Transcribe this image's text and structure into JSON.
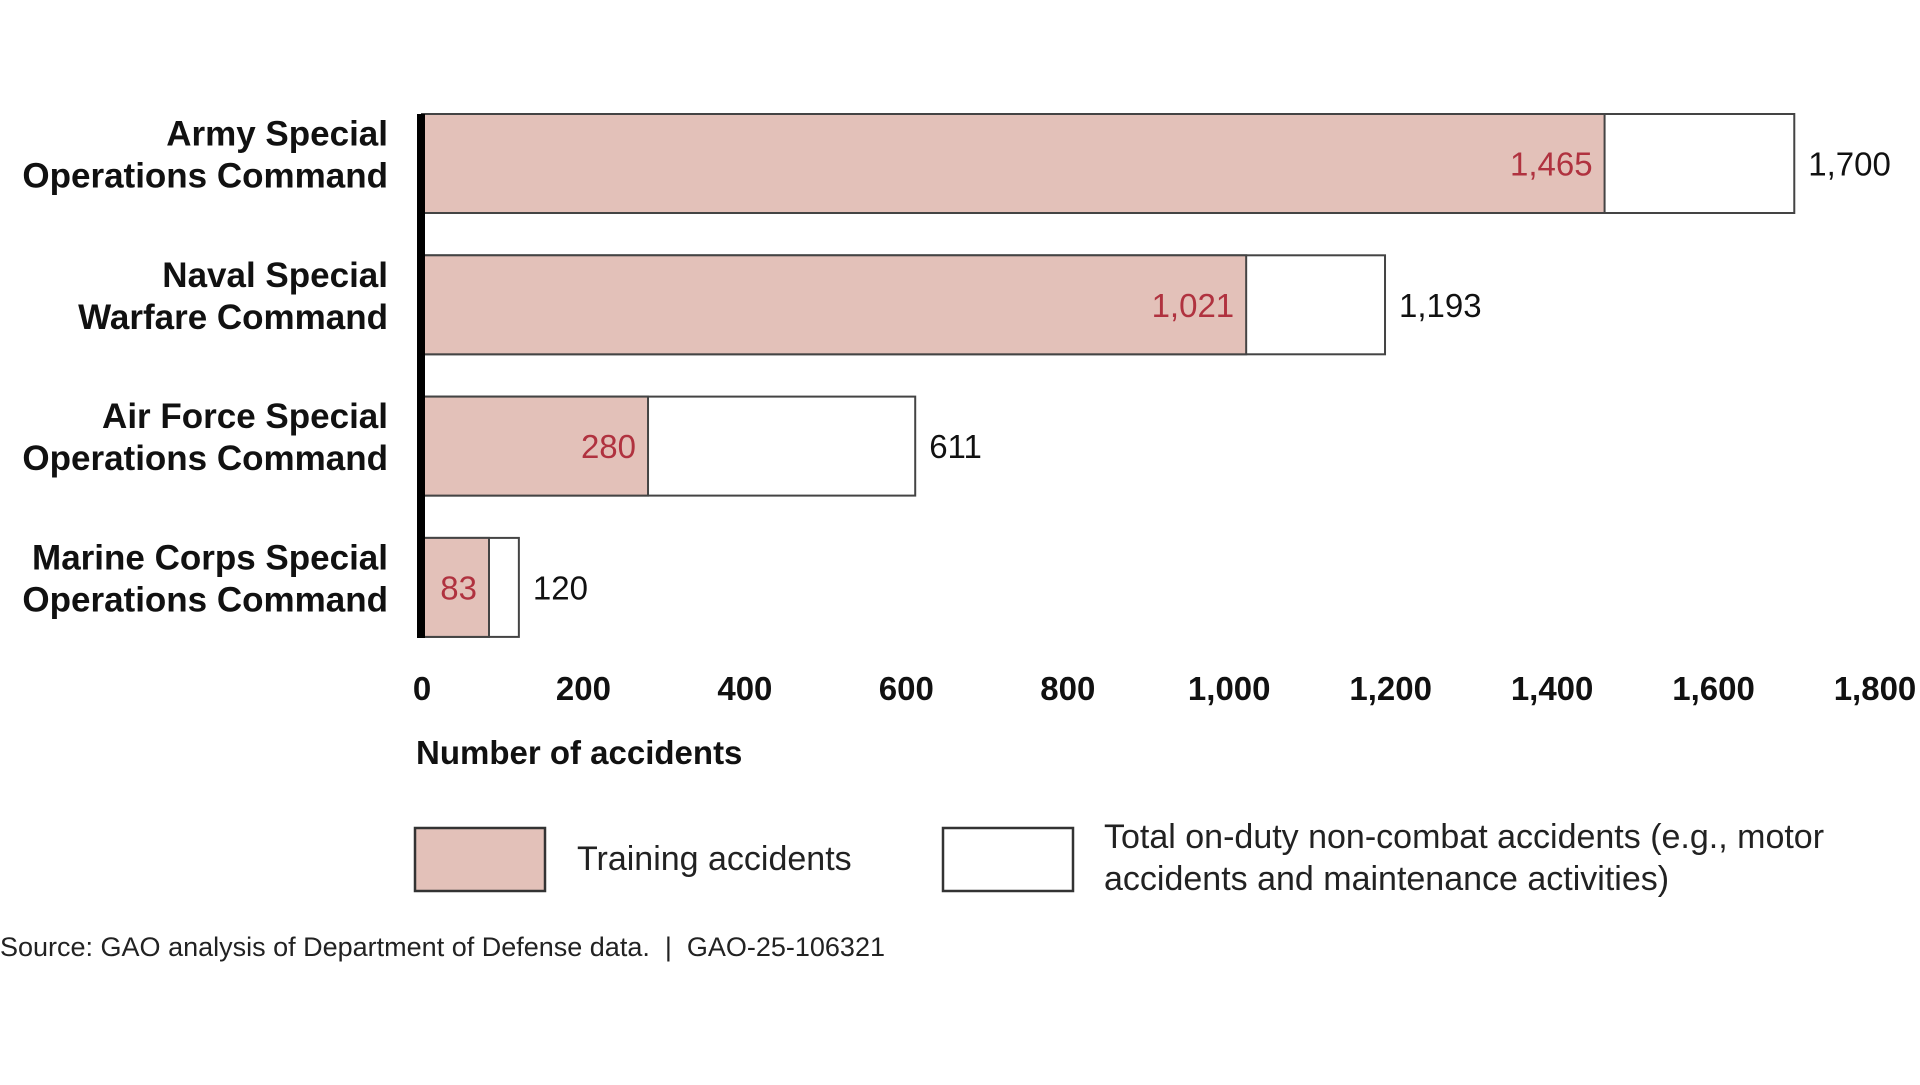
{
  "chart_data": {
    "type": "bar",
    "orientation": "horizontal",
    "stacked_overlay": true,
    "categories": [
      [
        "Army Special",
        "Operations Command"
      ],
      [
        "Naval Special",
        "Warfare Command"
      ],
      [
        "Air Force Special",
        "Operations Command"
      ],
      [
        "Marine Corps Special",
        "Operations Command"
      ]
    ],
    "series": [
      {
        "name": "Training accidents",
        "values": [
          1465,
          1021,
          280,
          83
        ],
        "labels": [
          "1,465",
          "1,021",
          "280",
          "83"
        ],
        "color": "#e3c1b9",
        "label_color": "#b0323f"
      },
      {
        "name": "Total on-duty non-combat accidents (e.g., motor accidents and maintenance activities)",
        "values": [
          1700,
          1193,
          611,
          120
        ],
        "labels": [
          "1,700",
          "1,193",
          "611",
          "120"
        ],
        "color": "#ffffff",
        "label_color": "#111111"
      }
    ],
    "xlabel": "Number of accidents",
    "xlim": [
      0,
      1800
    ],
    "xticks": [
      0,
      200,
      400,
      600,
      800,
      1000,
      1200,
      1400,
      1600,
      1800
    ],
    "xtick_labels": [
      "0",
      "200",
      "400",
      "600",
      "800",
      "1,000",
      "1,200",
      "1,400",
      "1,600",
      "1,800"
    ],
    "grid": false,
    "legend": {
      "placement": "bottom",
      "items": [
        {
          "lines": [
            "Training accidents"
          ]
        },
        {
          "lines": [
            "Total on-duty non-combat accidents (e.g., motor",
            "accidents and maintenance activities)"
          ]
        }
      ]
    }
  },
  "source": "Source: GAO analysis of Department of Defense data.  |  GAO-25-106321"
}
